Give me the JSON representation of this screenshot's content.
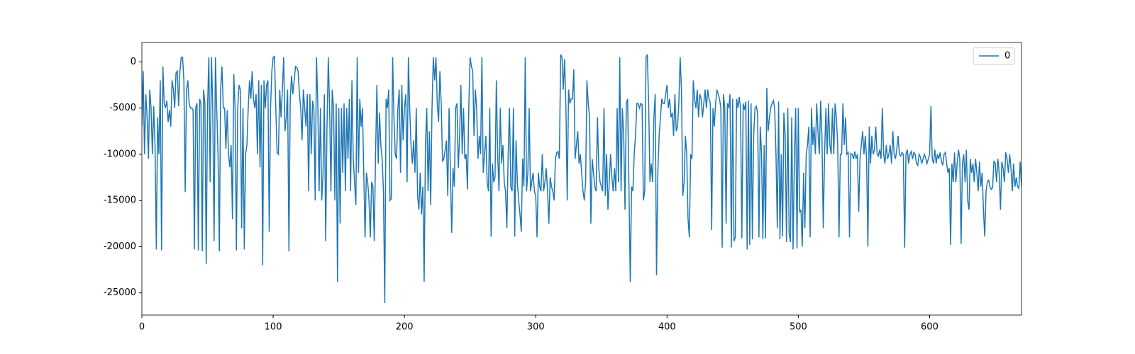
{
  "chart_data": {
    "type": "line",
    "x": [
      0,
      1,
      2,
      3,
      4,
      5,
      6,
      7,
      8,
      9,
      10,
      11,
      12,
      13,
      14,
      15,
      16,
      17,
      18,
      19,
      20,
      21,
      22,
      23,
      24,
      25,
      26,
      27,
      28,
      29,
      30,
      31,
      32,
      33,
      34,
      35,
      36,
      37,
      38,
      39,
      40,
      41,
      42,
      43,
      44,
      45,
      46,
      47,
      48,
      49,
      50,
      51,
      52,
      53,
      54,
      55,
      56,
      57,
      58,
      59,
      60,
      61,
      62,
      63,
      64,
      65,
      66,
      67,
      68,
      69,
      70,
      71,
      72,
      73,
      74,
      75,
      76,
      77,
      78,
      79,
      80,
      81,
      82,
      83,
      84,
      85,
      86,
      87,
      88,
      89,
      90,
      91,
      92,
      93,
      94,
      95,
      96,
      97,
      98,
      99,
      100,
      101,
      102,
      103,
      104,
      105,
      106,
      107,
      108,
      109,
      110,
      111,
      112,
      113,
      114,
      115,
      116,
      117,
      118,
      119,
      120,
      121,
      122,
      123,
      124,
      125,
      126,
      127,
      128,
      129,
      130,
      131,
      132,
      133,
      134,
      135,
      136,
      137,
      138,
      139,
      140,
      141,
      142,
      143,
      144,
      145,
      146,
      147,
      148,
      149,
      150,
      151,
      152,
      153,
      154,
      155,
      156,
      157,
      158,
      159,
      160,
      161,
      162,
      163,
      164,
      165,
      166,
      167,
      168,
      169,
      170,
      171,
      172,
      173,
      174,
      175,
      176,
      177,
      178,
      179,
      180,
      181,
      182,
      183,
      184,
      185,
      186,
      187,
      188,
      189,
      190,
      191,
      192,
      193,
      194,
      195,
      196,
      197,
      198,
      199,
      200,
      201,
      202,
      203,
      204,
      205,
      206,
      207,
      208,
      209,
      210,
      211,
      212,
      213,
      214,
      215,
      216,
      217,
      218,
      219,
      220,
      221,
      222,
      223,
      224,
      225,
      226,
      227,
      228,
      229,
      230,
      231,
      232,
      233,
      234,
      235,
      236,
      237,
      238,
      239,
      240,
      241,
      242,
      243,
      244,
      245,
      246,
      247,
      248,
      249,
      250,
      251,
      252,
      253,
      254,
      255,
      256,
      257,
      258,
      259,
      260,
      261,
      262,
      263,
      264,
      265,
      266,
      267,
      268,
      269,
      270,
      271,
      272,
      273,
      274,
      275,
      276,
      277,
      278,
      279,
      280,
      281,
      282,
      283,
      284,
      285,
      286,
      287,
      288,
      289,
      290,
      291,
      292,
      293,
      294,
      295,
      296,
      297,
      298,
      299,
      300,
      301,
      302,
      303,
      304,
      305,
      306,
      307,
      308,
      309,
      310,
      311,
      312,
      313,
      314,
      315,
      316,
      317,
      318,
      319,
      320,
      321,
      322,
      323,
      324,
      325,
      326,
      327,
      328,
      329,
      330,
      331,
      332,
      333,
      334,
      335,
      336,
      337,
      338,
      339,
      340,
      341,
      342,
      343,
      344,
      345,
      346,
      347,
      348,
      349,
      350,
      351,
      352,
      353,
      354,
      355,
      356,
      357,
      358,
      359,
      360,
      361,
      362,
      363,
      364,
      365,
      366,
      367,
      368,
      369,
      370,
      371,
      372,
      373,
      374,
      375,
      376,
      377,
      378,
      379,
      380,
      381,
      382,
      383,
      384,
      385,
      386,
      387,
      388,
      389,
      390,
      391,
      392,
      393,
      394,
      395,
      396,
      397,
      398,
      399,
      400,
      401,
      402,
      403,
      404,
      405,
      406,
      407,
      408,
      409,
      410,
      411,
      412,
      413,
      414,
      415,
      416,
      417,
      418,
      419,
      420,
      421,
      422,
      423,
      424,
      425,
      426,
      427,
      428,
      429,
      430,
      431,
      432,
      433,
      434,
      435,
      436,
      437,
      438,
      439,
      440,
      441,
      442,
      443,
      444,
      445,
      446,
      447,
      448,
      449,
      450,
      451,
      452,
      453,
      454,
      455,
      456,
      457,
      458,
      459,
      460,
      461,
      462,
      463,
      464,
      465,
      466,
      467,
      468,
      469,
      470,
      471,
      472,
      473,
      474,
      475,
      476,
      477,
      478,
      479,
      480,
      481,
      482,
      483,
      484,
      485,
      486,
      487,
      488,
      489,
      490,
      491,
      492,
      493,
      494,
      495,
      496,
      497,
      498,
      499,
      500,
      501,
      502,
      503,
      504,
      505,
      506,
      507,
      508,
      509,
      510,
      511,
      512,
      513,
      514,
      515,
      516,
      517,
      518,
      519,
      520,
      521,
      522,
      523,
      524,
      525,
      526,
      527,
      528,
      529,
      530,
      531,
      532,
      533,
      534,
      535,
      536,
      537,
      538,
      539,
      540,
      541,
      542,
      543,
      544,
      545,
      546,
      547,
      548,
      549,
      550,
      551,
      552,
      553,
      554,
      555,
      556,
      557,
      558,
      559,
      560,
      561,
      562,
      563,
      564,
      565,
      566,
      567,
      568,
      569,
      570,
      571,
      572,
      573,
      574,
      575,
      576,
      577,
      578,
      579,
      580,
      581,
      582,
      583,
      584,
      585,
      586,
      587,
      588,
      589,
      590,
      591,
      592,
      593,
      594,
      595,
      596,
      597,
      598,
      599,
      600,
      601,
      602,
      603,
      604,
      605,
      606,
      607,
      608,
      609,
      610,
      611,
      612,
      613,
      614,
      615,
      616,
      617,
      618,
      619,
      620,
      621,
      622,
      623,
      624,
      625,
      626,
      627,
      628,
      629,
      630,
      631,
      632,
      633,
      634,
      635,
      636,
      637,
      638,
      639,
      640,
      641,
      642,
      643,
      644,
      645,
      646,
      647,
      648,
      649,
      650,
      651,
      652,
      653,
      654,
      655,
      656,
      657,
      658,
      659,
      660,
      661,
      662,
      663,
      664,
      665,
      666,
      667,
      668,
      669,
      670
    ],
    "series": [
      {
        "name": "0",
        "color": "#1f77b4",
        "values": [
          -7000,
          -1000,
          -10000,
          -3500,
          -6000,
          -10500,
          -3000,
          -5000,
          -10000,
          -4800,
          -9000,
          -20300,
          -6000,
          -10000,
          -2000,
          -20400,
          -500,
          -4500,
          -5000,
          -4200,
          -6500,
          -5200,
          -7000,
          -2000,
          -3000,
          -5000,
          -1200,
          -1000,
          -4800,
          -1000,
          500,
          500,
          -2000,
          -14100,
          -3000,
          -2000,
          -4500,
          -5000,
          -5000,
          -5200,
          -20300,
          -5000,
          -4500,
          -20400,
          -4000,
          -4500,
          -20500,
          -3000,
          -4500,
          -21900,
          -5000,
          500,
          -13000,
          500,
          -5000,
          -19400,
          500,
          -5000,
          -10000,
          -20500,
          -3000,
          -500,
          -5000,
          -5000,
          -9400,
          -5200,
          -10000,
          -11400,
          -9000,
          -17000,
          -1300,
          -5000,
          -20400,
          -5000,
          -2500,
          -3000,
          -18000,
          -5000,
          -20300,
          -10000,
          -9000,
          -5000,
          -2000,
          -4000,
          -1000,
          -4000,
          -5000,
          -3500,
          -10000,
          -2000,
          -11400,
          -2500,
          -22000,
          -2000,
          -5000,
          -2500,
          -2000,
          -18400,
          -5000,
          -1000,
          500,
          600,
          -5000,
          -9800,
          -10000,
          -3000,
          -6000,
          -3000,
          500,
          -7500,
          -6000,
          -3000,
          -20500,
          -4000,
          -1500,
          -3500,
          -2000,
          -500,
          -600,
          -1000,
          -3500,
          -5000,
          -8500,
          -3000,
          -5000,
          -7000,
          -3500,
          -14000,
          -3500,
          -10000,
          -4200,
          -5000,
          -15000,
          500,
          -4500,
          -14000,
          -5000,
          -15000,
          -12000,
          -3500,
          -19400,
          -7000,
          500,
          -5000,
          -14000,
          -3000,
          -5000,
          -15000,
          -4500,
          -23800,
          -5000,
          -17500,
          -5000,
          -12000,
          -4500,
          -14000,
          -5000,
          -10500,
          -4000,
          -14000,
          -2000,
          -10500,
          -13000,
          -15500,
          500,
          -12000,
          -4000,
          -7000,
          -5000,
          -12000,
          -19000,
          -12000,
          -13000,
          -15000,
          -19000,
          -13000,
          -13500,
          -19400,
          -10000,
          -2500,
          -11000,
          -5500,
          -9000,
          -10500,
          -14000,
          -26100,
          -4000,
          -5000,
          -3000,
          -15000,
          -14800,
          500,
          -6000,
          -10000,
          -10500,
          -5000,
          -3000,
          -12000,
          -2500,
          -8500,
          -5000,
          -3500,
          -13000,
          500,
          -5000,
          -9000,
          -11000,
          -8500,
          -12000,
          -5000,
          -14500,
          -16000,
          -12000,
          -16500,
          -13500,
          -23800,
          -9000,
          -5000,
          -14000,
          -7500,
          -15500,
          -5000,
          500,
          -2000,
          500,
          -4500,
          -6500,
          -1000,
          -4500,
          -10800,
          -10500,
          -9500,
          -8500,
          -14500,
          -5000,
          -12000,
          -18500,
          -11500,
          -13500,
          -5000,
          -4500,
          -11500,
          -8000,
          -2500,
          -10000,
          -5000,
          -10500,
          -10000,
          -13800,
          -5000,
          500,
          -500,
          -1000,
          -8000,
          -3000,
          -5000,
          -10500,
          -8000,
          -10000,
          500,
          -12000,
          -10000,
          -8000,
          -13000,
          -14000,
          -5000,
          -18900,
          -11000,
          -13000,
          -12500,
          -2000,
          -10000,
          -14000,
          -5000,
          -11000,
          -9000,
          -13000,
          -14000,
          -18000,
          -10000,
          -5000,
          -13500,
          -14000,
          -5000,
          -18900,
          -8500,
          -13000,
          -15000,
          -16500,
          -18400,
          -10500,
          -13500,
          500,
          -14000,
          -12000,
          -5000,
          -14000,
          -13000,
          -12000,
          -14000,
          -14500,
          -19000,
          -12000,
          -13500,
          -14000,
          -10000,
          -14000,
          -13000,
          -11500,
          -14000,
          -17500,
          -12500,
          -13500,
          -14000,
          -15000,
          -10500,
          -9800,
          -9700,
          -10500,
          800,
          500,
          -3000,
          300,
          -5000,
          -15000,
          -3000,
          -4500,
          -4000,
          -4000,
          -800,
          -10500,
          -9000,
          -7500,
          -11000,
          -10000,
          -12000,
          -14000,
          -15000,
          -13000,
          -2000,
          -4500,
          -6000,
          -17500,
          -10500,
          -12000,
          -13500,
          -14000,
          -6000,
          -11500,
          -13000,
          -13500,
          -14000,
          -5000,
          -14500,
          -10000,
          -16000,
          -13000,
          -10000,
          -12500,
          -14000,
          -11500,
          -14000,
          -5000,
          -13000,
          500,
          -14000,
          -5000,
          -8000,
          -16000,
          -4500,
          -4000,
          -13500,
          -23800,
          -13500,
          -14000,
          -10000,
          -8000,
          -4500,
          -4500,
          -5000,
          -4500,
          -4600,
          -15000,
          -14000,
          500,
          800,
          -4500,
          -13000,
          -11000,
          -13000,
          -6000,
          -3500,
          -23100,
          -12000,
          -8000,
          -6000,
          -4000,
          -4500,
          -4500,
          -3500,
          -2500,
          -5000,
          -4000,
          -6000,
          -5500,
          -8000,
          -3500,
          -7500,
          -7000,
          -4500,
          500,
          -3000,
          -14500,
          -13000,
          -8000,
          -10000,
          -17000,
          -19000,
          -10000,
          -10500,
          -2000,
          -4000,
          -5000,
          -3000,
          -6000,
          -3500,
          -4000,
          -6000,
          -4500,
          -3000,
          -5000,
          -3000,
          -4000,
          -4500,
          -18200,
          -5000,
          -7000,
          -4500,
          -3000,
          -3500,
          -4000,
          -5000,
          -20100,
          -3500,
          -5000,
          -17500,
          -4500,
          -5000,
          -3500,
          -20100,
          -4000,
          -19400,
          -19000,
          -4000,
          -5000,
          -3800,
          -5000,
          -19100,
          -4500,
          -5200,
          -4300,
          -20300,
          -4200,
          -19800,
          -4500,
          -19200,
          -8000,
          -5000,
          -4800,
          -5500,
          -19000,
          -7000,
          -10000,
          -19200,
          -9000,
          -19100,
          -2800,
          -7500,
          -6000,
          -5000,
          -4500,
          -4200,
          -5000,
          -10000,
          -18000,
          -4300,
          -19200,
          -10000,
          -18900,
          -5500,
          -8000,
          -19500,
          -5000,
          -18500,
          -19500,
          -6000,
          -20300,
          -10500,
          -5000,
          -20200,
          -5000,
          -16300,
          -16000,
          -20000,
          -12000,
          -18000,
          -10000,
          -9000,
          -7000,
          -19000,
          -5000,
          -9000,
          -7000,
          -10000,
          -4500,
          -7500,
          -10000,
          -4200,
          -8000,
          -18000,
          -10000,
          -5000,
          -10000,
          -4500,
          -9000,
          -10000,
          -5000,
          -10000,
          -4500,
          -6000,
          -9000,
          -19000,
          -10000,
          -10000,
          -4500,
          -9000,
          -6000,
          -10000,
          -9800,
          -19000,
          -9900,
          -10000,
          -10500,
          -9700,
          -10500,
          -10000,
          -16200,
          -10500,
          -9000,
          -7500,
          -10000,
          -8000,
          -10500,
          -20000,
          -7000,
          -11000,
          -8000,
          -10000,
          -9500,
          -7000,
          -10000,
          -10200,
          -9500,
          -10500,
          -5000,
          -10000,
          -11000,
          -9000,
          -10500,
          -10000,
          -9000,
          -11000,
          -7500,
          -10000,
          -10500,
          -9500,
          -8000,
          -10000,
          -10200,
          -9800,
          -10000,
          -20100,
          -10000,
          -9500,
          -11000,
          -10000,
          -9700,
          -10500,
          -9800,
          -10000,
          -11000,
          -11200,
          -10000,
          -10300,
          -11000,
          -10500,
          -10000,
          -10400,
          -11000,
          -10500,
          -10000,
          -4800,
          -10500,
          -11000,
          -9500,
          -11000,
          -10000,
          -10500,
          -9800,
          -10700,
          -11200,
          -10000,
          -9800,
          -11000,
          -12000,
          -11500,
          -19800,
          -11000,
          -13000,
          -9800,
          -13000,
          -11000,
          -9500,
          -10500,
          -19700,
          -11000,
          -10000,
          -13000,
          -9500,
          -15000,
          -16000,
          -10500,
          -12000,
          -11000,
          -13000,
          -10500,
          -12000,
          -14000,
          -10800,
          -13500,
          -12000,
          -16000,
          -18900,
          -14000,
          -13000,
          -12800,
          -13500,
          -13800,
          -13600,
          -10700,
          -11000,
          -13000,
          -10500,
          -12000,
          -16000,
          -10800,
          -11500,
          -13000,
          -9800,
          -10500,
          -12000,
          -10000,
          -11500,
          -14000,
          -11000,
          -13500,
          -12500,
          -13500,
          -13700,
          -10800,
          -13500
        ]
      }
    ],
    "xlim": [
      0,
      670
    ],
    "xticks": [
      0,
      100,
      200,
      300,
      400,
      500,
      600
    ],
    "ylim": [
      -27400,
      2100
    ],
    "yticks": [
      0,
      -5000,
      -10000,
      -15000,
      -20000,
      -25000
    ],
    "legend": "upper right"
  }
}
